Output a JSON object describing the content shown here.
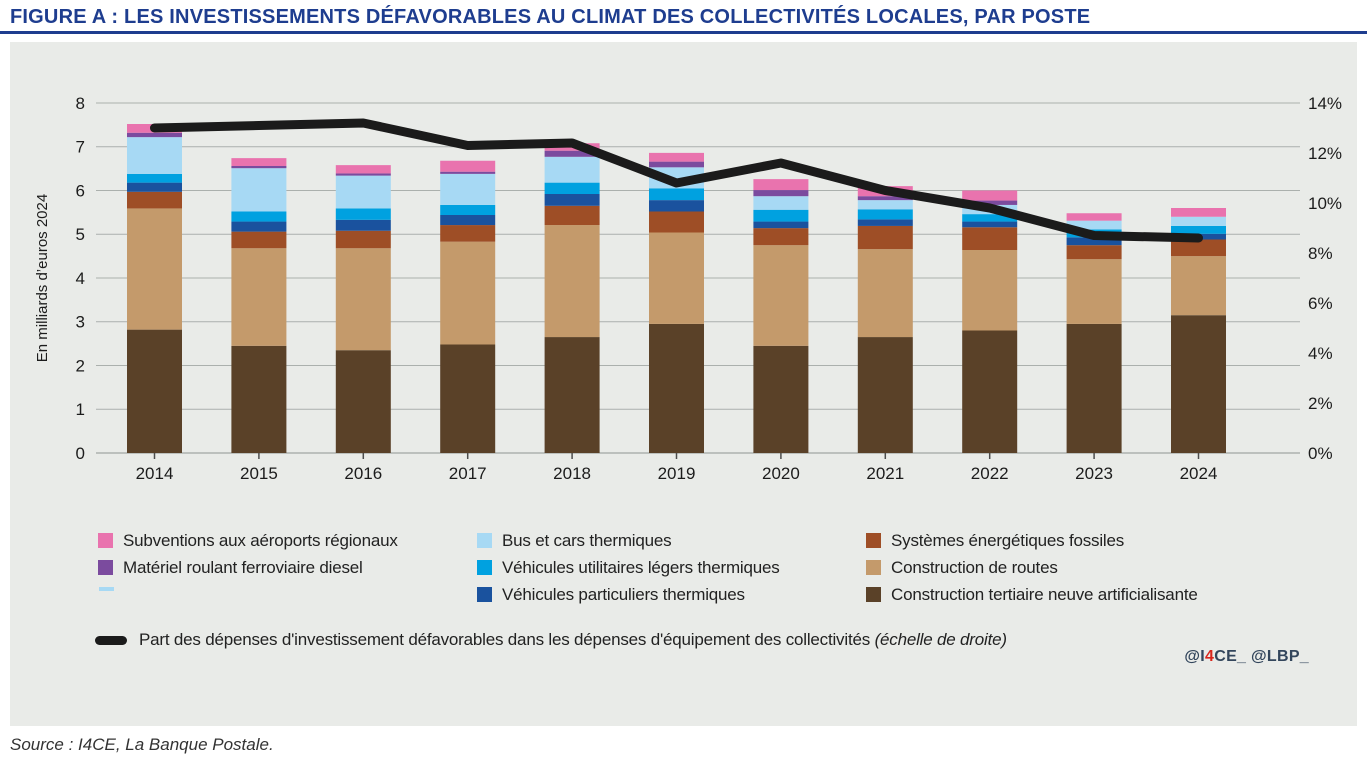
{
  "title": "FIGURE A : LES INVESTISSEMENTS DÉFAVORABLES AU CLIMAT DES COLLECTIVITÉS LOCALES, PAR POSTE",
  "source": "Source : I4CE, La Banque Postale.",
  "watermark": {
    "prefix": "@I",
    "highlight": "4",
    "suffix": "CE_ @LBP_",
    "highlight_color": "#d9261c",
    "text_color": "#33465c"
  },
  "colors": {
    "title_blue": "#1e3d8f",
    "panel_bg": "#e9ebe8",
    "gridline": "#abb0ad",
    "baseline": "#8f9492",
    "axis_text": "#1c1c1c",
    "trend_line": "#1b1b1b"
  },
  "chart_data": {
    "type": "bar",
    "subtype": "stacked-bar-with-line",
    "title": "FIGURE A : LES INVESTISSEMENTS DÉFAVORABLES AU CLIMAT DES COLLECTIVITÉS LOCALES, PAR POSTE",
    "categories": [
      "2014",
      "2015",
      "2016",
      "2017",
      "2018",
      "2019",
      "2020",
      "2021",
      "2022",
      "2023",
      "2024"
    ],
    "ylabel_left": "En milliards d’euros 2024",
    "yaxis_left": {
      "min": 0,
      "max": 8,
      "step": 1
    },
    "yaxis_right": {
      "min": 0,
      "max": 14,
      "step": 2,
      "unit": "%"
    },
    "grid": true,
    "legend_position": "bottom",
    "series": [
      {
        "name": "Construction tertiaire neuve artificialisante",
        "color": "#5a4128",
        "values": [
          2.82,
          2.45,
          2.35,
          2.48,
          2.65,
          2.95,
          2.45,
          2.65,
          2.8,
          2.95,
          3.15
        ]
      },
      {
        "name": "Construction de routes",
        "color": "#c49a6b",
        "values": [
          2.77,
          2.23,
          2.33,
          2.35,
          2.56,
          2.09,
          2.3,
          2.01,
          1.84,
          1.48,
          1.35
        ]
      },
      {
        "name": "Systèmes énergétiques fossiles",
        "color": "#9e4e26",
        "values": [
          0.38,
          0.38,
          0.4,
          0.38,
          0.44,
          0.48,
          0.39,
          0.53,
          0.52,
          0.32,
          0.38
        ]
      },
      {
        "name": "Véhicules particuliers thermiques",
        "color": "#1a529e",
        "values": [
          0.21,
          0.23,
          0.25,
          0.23,
          0.27,
          0.26,
          0.15,
          0.15,
          0.13,
          0.18,
          0.13
        ]
      },
      {
        "name": "Véhicules utilitaires légers thermiques",
        "color": "#00a1e0",
        "values": [
          0.2,
          0.23,
          0.26,
          0.23,
          0.26,
          0.27,
          0.27,
          0.23,
          0.17,
          0.18,
          0.18
        ]
      },
      {
        "name": "Bus et cars thermiques",
        "color": "#a7d9f4",
        "values": [
          0.84,
          0.99,
          0.75,
          0.71,
          0.59,
          0.48,
          0.31,
          0.21,
          0.21,
          0.2,
          0.21
        ]
      },
      {
        "name": "Matériel roulant ferroviaire diesel",
        "color": "#7b4b9e",
        "values": [
          0.1,
          0.05,
          0.05,
          0.05,
          0.14,
          0.13,
          0.14,
          0.09,
          0.1,
          0.0,
          0.0
        ]
      },
      {
        "name": "Subventions aux aéroports régionaux",
        "color": "#e973ae",
        "values": [
          0.2,
          0.18,
          0.19,
          0.25,
          0.17,
          0.2,
          0.25,
          0.23,
          0.23,
          0.17,
          0.2
        ]
      }
    ],
    "line_series": {
      "name": "Part des dépenses d'investissement défavorables dans les dépenses d'équipement des collectivités",
      "axis": "right",
      "color": "#1b1b1b",
      "values": [
        13.0,
        13.1,
        13.2,
        12.3,
        12.4,
        10.8,
        11.6,
        10.5,
        9.8,
        8.7,
        8.6
      ]
    }
  },
  "legend": {
    "items": [
      {
        "label": "Subventions aux aéroports régionaux",
        "color": "#e973ae"
      },
      {
        "label": "Matériel roulant ferroviaire diesel",
        "color": "#7b4b9e"
      },
      {
        "label": "Bus et cars thermiques",
        "color": "#a7d9f4"
      },
      {
        "label": "Véhicules utilitaires légers thermiques",
        "color": "#00a1e0"
      },
      {
        "label": "Véhicules particuliers thermiques",
        "color": "#1a529e"
      },
      {
        "label": "Systèmes énergétiques fossiles",
        "color": "#9e4e26"
      },
      {
        "label": "Construction de routes",
        "color": "#c49a6b"
      },
      {
        "label": "Construction tertiaire neuve artificialisante",
        "color": "#5a4128"
      }
    ],
    "artifact_color": "#a7d9f4",
    "line_item": {
      "label": "Part des dépenses d'investissement défavorables dans les dépenses d'équipement des collectivités",
      "note": "(échelle de droite)"
    }
  }
}
